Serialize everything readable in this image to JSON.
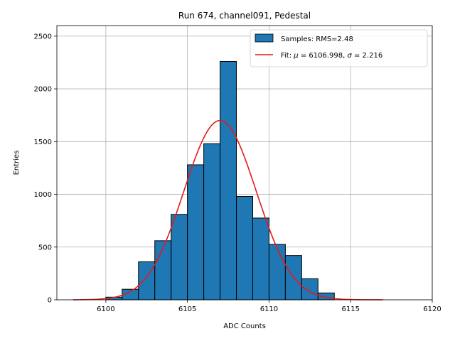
{
  "chart_data": {
    "type": "bar",
    "title": "Run 674, channel091, Pedestal",
    "xlabel": "ADC Counts",
    "ylabel": "Entries",
    "xlim": [
      6097,
      6120
    ],
    "ylim": [
      0,
      2600
    ],
    "grid": true,
    "x_ticks": [
      6100,
      6105,
      6110,
      6115,
      6120
    ],
    "y_ticks": [
      0,
      500,
      1000,
      1500,
      2000,
      2500
    ],
    "legend_position": "top-right",
    "histogram": {
      "label": "Samples: RMS=2.48",
      "color": "#1f77b4",
      "edge_color": "#000000",
      "bin_edges": [
        6100,
        6101,
        6102,
        6103,
        6104,
        6105,
        6106,
        6107,
        6108,
        6109,
        6110,
        6111,
        6112,
        6113,
        6114
      ],
      "counts": [
        25,
        100,
        360,
        560,
        810,
        1280,
        1480,
        2260,
        980,
        775,
        525,
        420,
        200,
        65
      ]
    },
    "fit": {
      "label": "Fit: μ = 6106.998, σ = 2.216",
      "label_prefix": "Fit: ",
      "mu_symbol": "μ",
      "mu_value": " = 6106.998, ",
      "sigma_symbol": "σ",
      "sigma_value": " = 2.216",
      "color": "#e41a1c",
      "mu": 6106.998,
      "sigma": 2.216,
      "amplitude": 1700,
      "x_range": [
        6098,
        6117
      ]
    }
  }
}
